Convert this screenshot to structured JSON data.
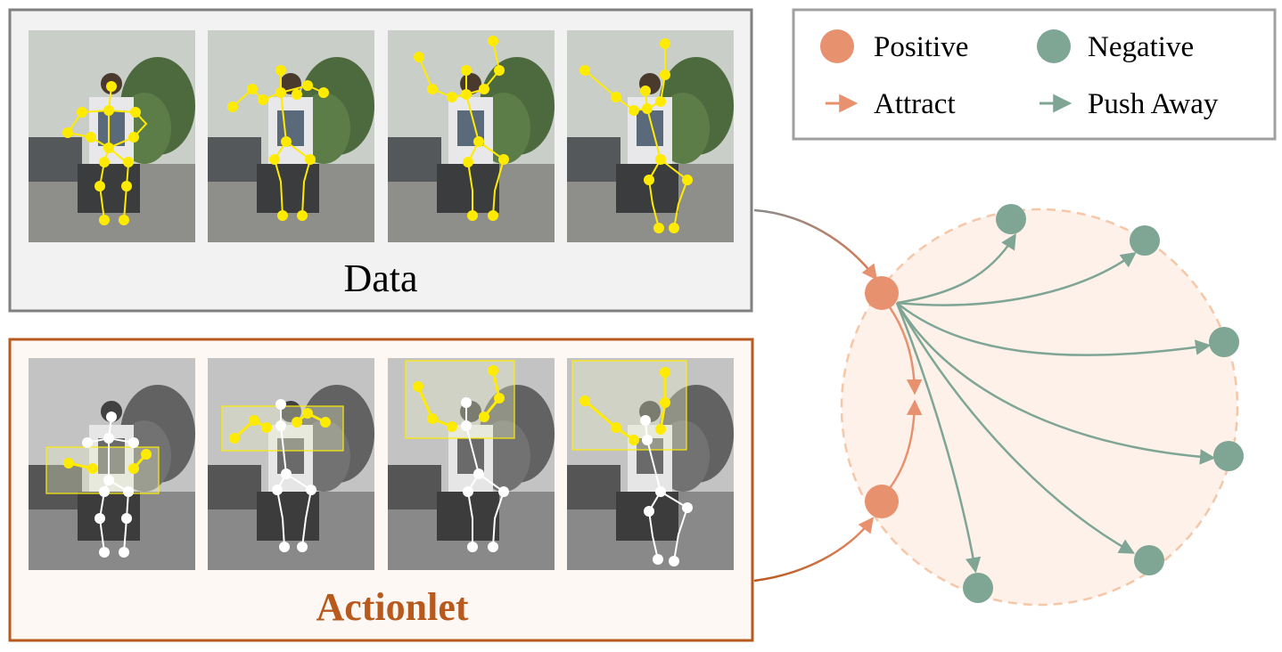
{
  "data_panel": {
    "label": "Data",
    "frames": [
      {
        "id": "frame-1",
        "pose": "arms-low"
      },
      {
        "id": "frame-2",
        "pose": "arms-forward"
      },
      {
        "id": "frame-3",
        "pose": "arms-raised"
      },
      {
        "id": "frame-4",
        "pose": "arm-raised-diagonal"
      }
    ]
  },
  "actionlet_panel": {
    "label": "Actionlet",
    "frames": [
      {
        "id": "frame-1",
        "region": "hands"
      },
      {
        "id": "frame-2",
        "region": "arms"
      },
      {
        "id": "frame-3",
        "region": "raised-arms"
      },
      {
        "id": "frame-4",
        "region": "raised-arms"
      }
    ]
  },
  "legend": {
    "positive": "Positive",
    "negative": "Negative",
    "attract": "Attract",
    "push_away": "Push Away"
  },
  "colors": {
    "positive": "#E8916E",
    "negative": "#7FA595",
    "attract_arrow": "#E8916E",
    "push_arrow": "#7FA595",
    "actionlet_border": "#B85A1E",
    "actionlet_text": "#B85A1E",
    "data_border": "#808080",
    "joint_highlight": "#FFEB00",
    "joint_plain": "#FFFFFF",
    "circle_fill": "#FDF1EA",
    "circle_border": "#F5C7A8"
  }
}
